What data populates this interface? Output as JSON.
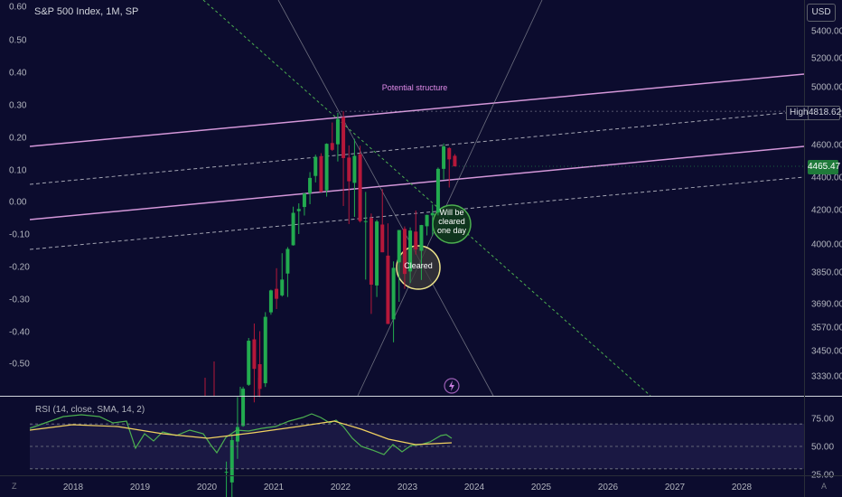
{
  "symbol": "S&P 500 Index, 1M, SP",
  "currency_button": "USD",
  "rsi_label": "RSI (14, close, SMA, 14, 2)",
  "high_label": "High",
  "high_value": "4818.62",
  "last_price": "4465.47",
  "annotations": {
    "structure": "Potential structure",
    "cleared": "Cleared",
    "will_be_cleared": [
      "Will be",
      "cleared",
      "one day"
    ]
  },
  "corner_left": "Z",
  "corner_right": "A",
  "colors": {
    "background": "#0c0c2e",
    "up": "#22ab4f",
    "down": "#b5183a",
    "structure_line": "#d497d9",
    "green_dashed": "#4caf50",
    "rsi_line": "#4caf50",
    "rsi_sma": "#f0d060",
    "price_badge": "#1f7a3a"
  },
  "chart_data": {
    "type": "candlestick",
    "title": "S&P 500 Index, 1M, SP",
    "right_axis_ticks": [
      "5400.00",
      "5200.00",
      "5000.00",
      "4800.00",
      "4600.00",
      "4400.00",
      "4200.00",
      "4000.00",
      "3850.00",
      "3690.00",
      "3570.00",
      "3450.00",
      "3330.00"
    ],
    "left_axis_ticks": [
      "0.60",
      "0.50",
      "0.40",
      "0.30",
      "0.20",
      "0.10",
      "0.00",
      "-0.10",
      "-0.20",
      "-0.30",
      "-0.40",
      "-0.50"
    ],
    "x_ticks": [
      "2018",
      "2019",
      "2020",
      "2021",
      "2022",
      "2023",
      "2024",
      "2025",
      "2026",
      "2027",
      "2028"
    ],
    "rsi_ticks": [
      "75.00",
      "50.00",
      "25.00"
    ],
    "rsi_levels": [
      70,
      50,
      30
    ],
    "candles": [
      {
        "date": "2020-04",
        "o": 2912,
        "h": 2954,
        "l": 2728,
        "c": 2912
      },
      {
        "date": "2020-05",
        "o": 2869,
        "h": 3068,
        "l": 2766,
        "c": 3044
      },
      {
        "date": "2020-06",
        "o": 3038,
        "h": 3233,
        "l": 2965,
        "c": 3100
      },
      {
        "date": "2020-07",
        "o": 3105,
        "h": 3280,
        "l": 3101,
        "c": 3271
      },
      {
        "date": "2020-08",
        "o": 3289,
        "h": 3514,
        "l": 3284,
        "c": 3500
      },
      {
        "date": "2020-09",
        "o": 3507,
        "h": 3588,
        "l": 3209,
        "c": 3363
      },
      {
        "date": "2020-10",
        "o": 3385,
        "h": 3549,
        "l": 3233,
        "c": 3270
      },
      {
        "date": "2020-11",
        "o": 3296,
        "h": 3646,
        "l": 3279,
        "c": 3622
      },
      {
        "date": "2020-12",
        "o": 3645,
        "h": 3760,
        "l": 3633,
        "c": 3756
      },
      {
        "date": "2021-01",
        "o": 3764,
        "h": 3870,
        "l": 3662,
        "c": 3714
      },
      {
        "date": "2021-02",
        "o": 3731,
        "h": 3950,
        "l": 3725,
        "c": 3811
      },
      {
        "date": "2021-03",
        "o": 3842,
        "h": 3983,
        "l": 3723,
        "c": 3973
      },
      {
        "date": "2021-04",
        "o": 3993,
        "h": 4218,
        "l": 3991,
        "c": 4181
      },
      {
        "date": "2021-05",
        "o": 4191,
        "h": 4238,
        "l": 4057,
        "c": 4204
      },
      {
        "date": "2021-06",
        "o": 4216,
        "h": 4302,
        "l": 4165,
        "c": 4298
      },
      {
        "date": "2021-07",
        "o": 4300,
        "h": 4430,
        "l": 4233,
        "c": 4395
      },
      {
        "date": "2021-08",
        "o": 4407,
        "h": 4537,
        "l": 4367,
        "c": 4523
      },
      {
        "date": "2021-09",
        "o": 4528,
        "h": 4546,
        "l": 4306,
        "c": 4308
      },
      {
        "date": "2021-10",
        "o": 4317,
        "h": 4608,
        "l": 4279,
        "c": 4605
      },
      {
        "date": "2021-11",
        "o": 4610,
        "h": 4743,
        "l": 4560,
        "c": 4567
      },
      {
        "date": "2021-12",
        "o": 4602,
        "h": 4808,
        "l": 4495,
        "c": 4766
      },
      {
        "date": "2022-01",
        "o": 4778,
        "h": 4819,
        "l": 4222,
        "c": 4516
      },
      {
        "date": "2022-02",
        "o": 4519,
        "h": 4595,
        "l": 4115,
        "c": 4374
      },
      {
        "date": "2022-03",
        "o": 4364,
        "h": 4637,
        "l": 4157,
        "c": 4530
      },
      {
        "date": "2022-04",
        "o": 4540,
        "h": 4593,
        "l": 4124,
        "c": 4132
      },
      {
        "date": "2022-05",
        "o": 4130,
        "h": 4308,
        "l": 3811,
        "c": 4132
      },
      {
        "date": "2022-06",
        "o": 4150,
        "h": 4177,
        "l": 3637,
        "c": 3785
      },
      {
        "date": "2022-07",
        "o": 3781,
        "h": 4140,
        "l": 3723,
        "c": 4130
      },
      {
        "date": "2022-08",
        "o": 4112,
        "h": 4325,
        "l": 3955,
        "c": 3955
      },
      {
        "date": "2022-09",
        "o": 3937,
        "h": 4119,
        "l": 3585,
        "c": 3586
      },
      {
        "date": "2022-10",
        "o": 3609,
        "h": 3906,
        "l": 3492,
        "c": 3872
      },
      {
        "date": "2022-11",
        "o": 3901,
        "h": 4080,
        "l": 3699,
        "c": 4080
      },
      {
        "date": "2022-12",
        "o": 4087,
        "h": 4101,
        "l": 3764,
        "c": 3840
      },
      {
        "date": "2023-01",
        "o": 3853,
        "h": 4095,
        "l": 3794,
        "c": 4077
      },
      {
        "date": "2023-02",
        "o": 4071,
        "h": 4195,
        "l": 3943,
        "c": 3970
      },
      {
        "date": "2023-03",
        "o": 3963,
        "h": 4110,
        "l": 3809,
        "c": 4109
      },
      {
        "date": "2023-04",
        "o": 4102,
        "h": 4170,
        "l": 4049,
        "c": 4169
      },
      {
        "date": "2023-05",
        "o": 4166,
        "h": 4231,
        "l": 4048,
        "c": 4180
      },
      {
        "date": "2023-06",
        "o": 4183,
        "h": 4458,
        "l": 4166,
        "c": 4450
      },
      {
        "date": "2023-07",
        "o": 4450,
        "h": 4607,
        "l": 4385,
        "c": 4589
      },
      {
        "date": "2023-08",
        "o": 4578,
        "h": 4584,
        "l": 4335,
        "c": 4508
      },
      {
        "date": "2023-09",
        "o": 4530,
        "h": 4541,
        "l": 4465,
        "c": 4465
      }
    ]
  }
}
